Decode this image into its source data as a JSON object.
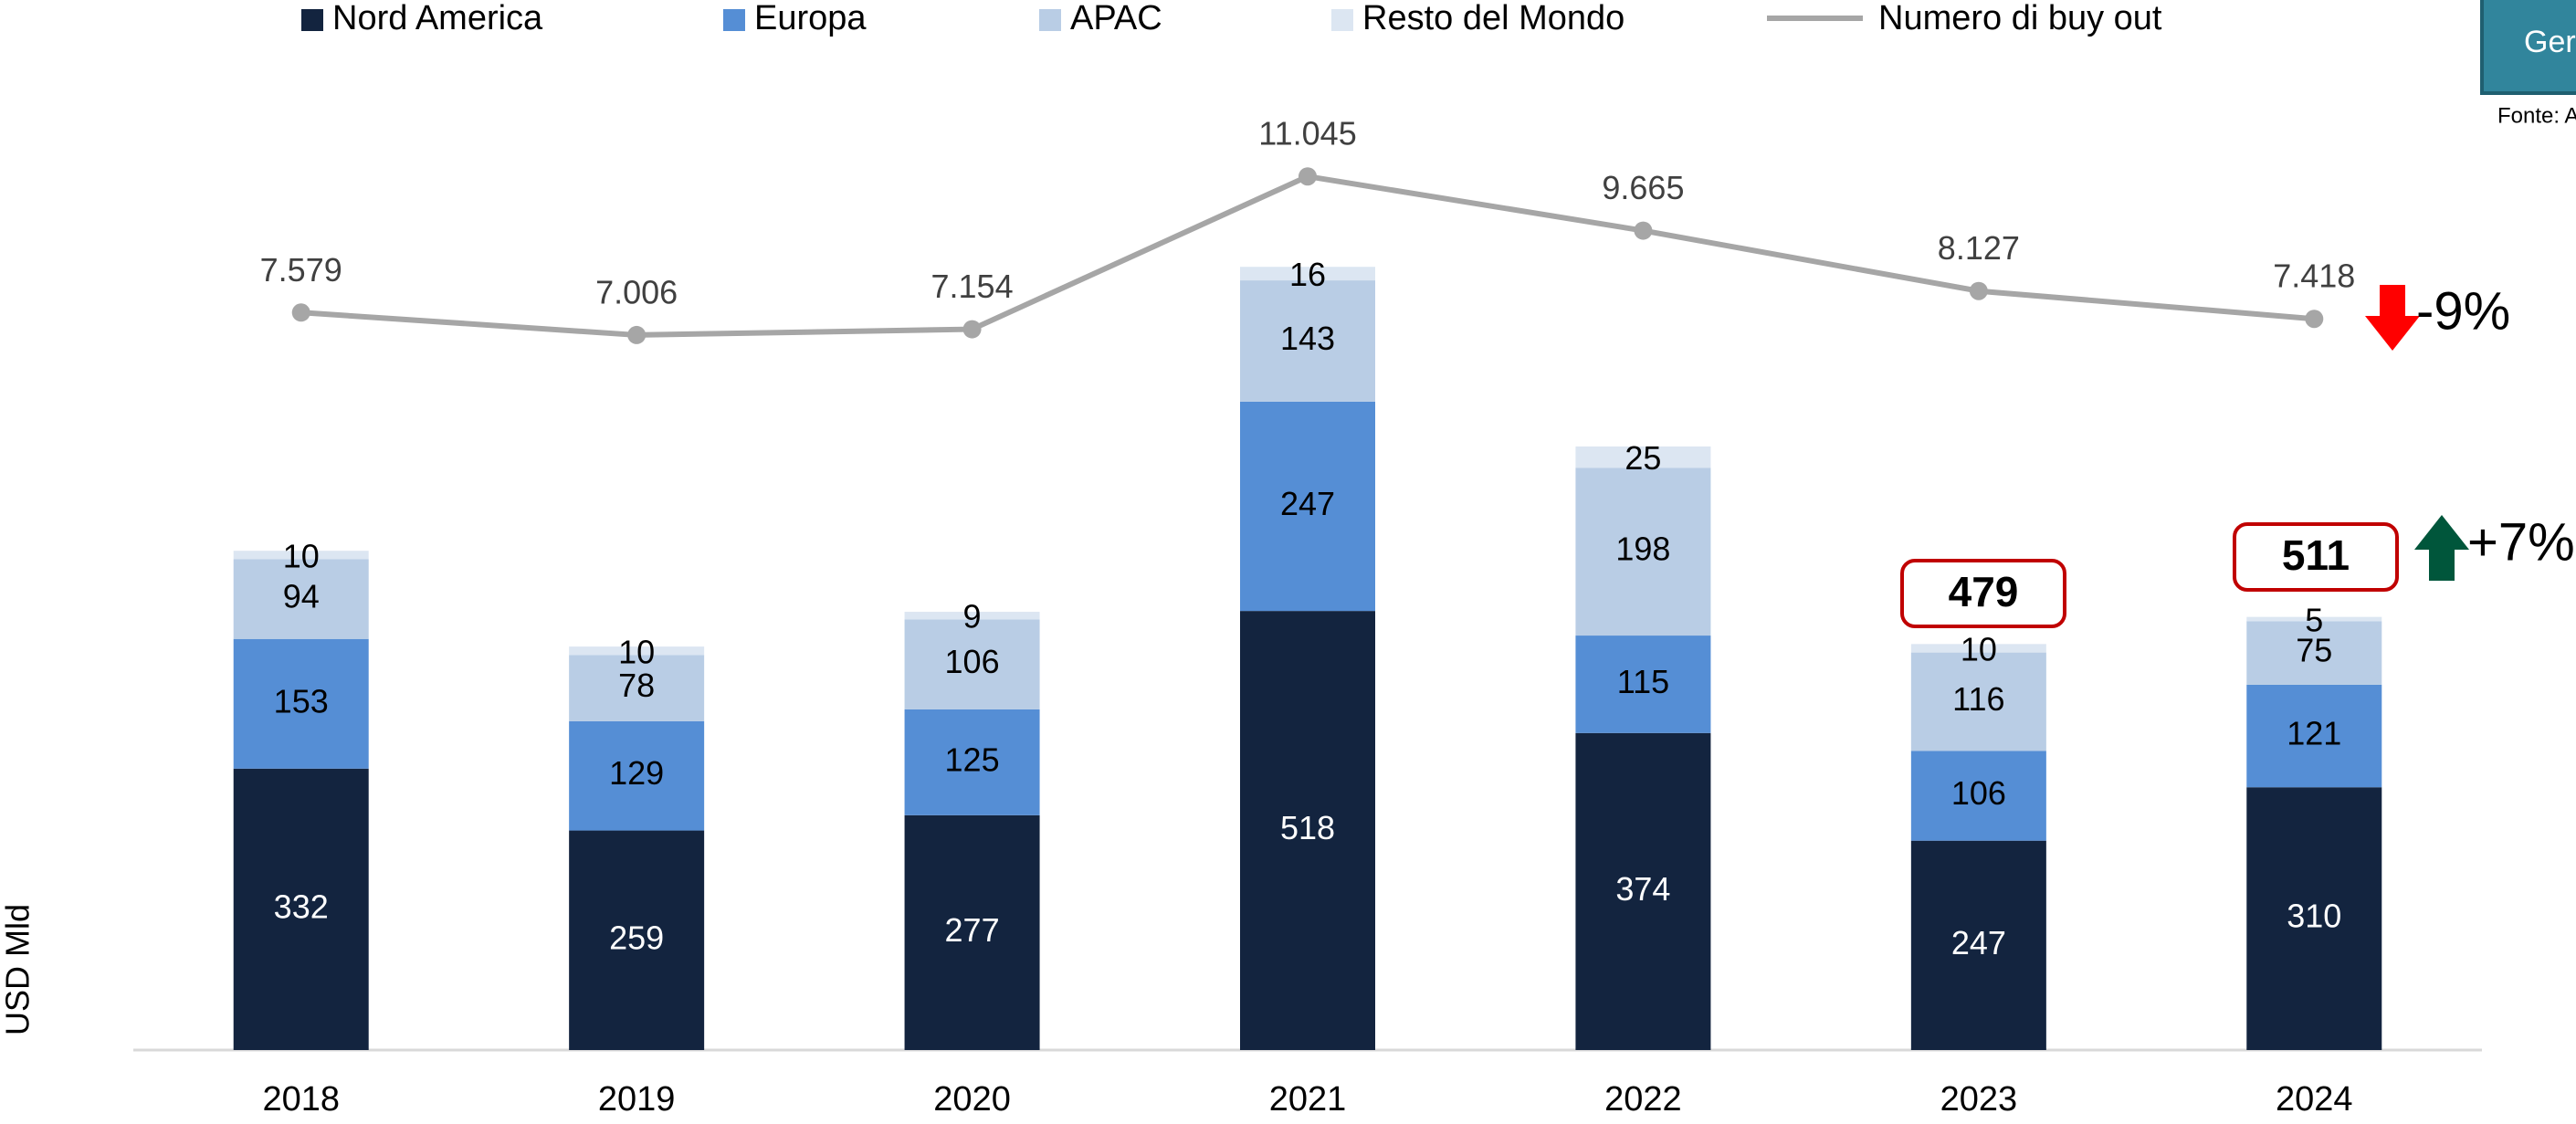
{
  "chart_data": {
    "type": "bar",
    "stacked": true,
    "y_label": "USD Mld",
    "categories": [
      "2018",
      "2019",
      "2020",
      "2021",
      "2022",
      "2023",
      "2024"
    ],
    "series": [
      {
        "name": "Nord America",
        "color": "#13243f",
        "values": [
          332,
          259,
          277,
          518,
          374,
          247,
          310
        ]
      },
      {
        "name": "Europa",
        "color": "#558ed5",
        "values": [
          153,
          129,
          125,
          247,
          115,
          106,
          121
        ]
      },
      {
        "name": "APAC",
        "color": "#b9cde5",
        "values": [
          94,
          78,
          106,
          143,
          198,
          116,
          75
        ]
      },
      {
        "name": "Resto del Mondo",
        "color": "#dce6f2",
        "values": [
          10,
          10,
          9,
          16,
          25,
          10,
          5
        ]
      },
      {
        "name": "Numero di buy out",
        "type": "line",
        "axis": "y2",
        "color": "#a6a6a6",
        "values": [
          7579,
          7006,
          7154,
          11045,
          9665,
          8127,
          7418
        ],
        "value_labels": [
          "7.579",
          "7.006",
          "7.154",
          "11.045",
          "9.665",
          "8.127",
          "7.418"
        ]
      }
    ],
    "ylim": [
      0,
      1200
    ],
    "y2lim": [
      -11200,
      14700
    ],
    "legend": "top",
    "annotations": [
      "479",
      "511",
      "-9%",
      "+7%"
    ],
    "badge": "Ger",
    "source": "Fonte: A"
  }
}
